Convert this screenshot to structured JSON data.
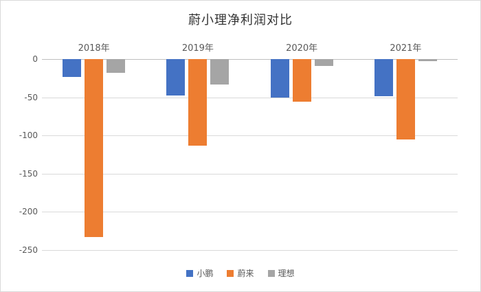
{
  "chart_data": {
    "type": "bar",
    "title": "蔚小理净利润对比",
    "categories": [
      "2018年",
      "2019年",
      "2020年",
      "2021年"
    ],
    "series": [
      {
        "name": "小鹏",
        "color": "#4472C4",
        "values": [
          -23,
          -48,
          -50,
          -49
        ]
      },
      {
        "name": "蔚来",
        "color": "#ED7D31",
        "values": [
          -233,
          -113,
          -56,
          -105
        ]
      },
      {
        "name": "理想",
        "color": "#A5A5A5",
        "values": [
          -18,
          -33,
          -9,
          -3
        ]
      }
    ],
    "xlabel": "",
    "ylabel": "",
    "ylim": [
      0,
      -250
    ],
    "yticks": [
      0,
      -50,
      -100,
      -150,
      -200,
      -250
    ],
    "grid": true,
    "legend_position": "bottom",
    "colors": {
      "gridline": "#d9d9d9",
      "zero_line": "#bfbfbf",
      "axis_text": "#595959",
      "title_text": "#333333"
    }
  }
}
